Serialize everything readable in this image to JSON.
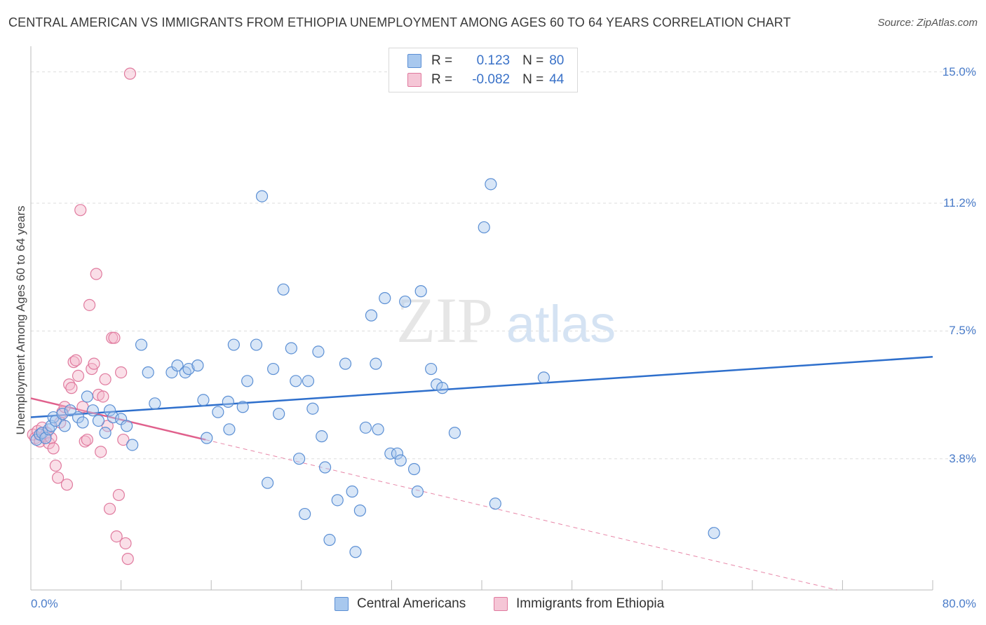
{
  "title": "CENTRAL AMERICAN VS IMMIGRANTS FROM ETHIOPIA UNEMPLOYMENT AMONG AGES 60 TO 64 YEARS CORRELATION CHART",
  "source": "Source: ZipAtlas.com",
  "watermark": {
    "zip": "ZIP",
    "atlas": "atlas"
  },
  "legend": {
    "r_label": "R =",
    "n_label": "N =",
    "series0": {
      "r": "0.123",
      "n": "80"
    },
    "series1": {
      "r": "-0.082",
      "n": "44"
    }
  },
  "colors": {
    "blue_fill": "#a8c8ee",
    "blue_stroke": "#5b8fd4",
    "blue_line": "#2e6fcc",
    "pink_fill": "#f5b8cc",
    "pink_stroke": "#e07a9e",
    "pink_line": "#e0608c",
    "grid": "#dddddd",
    "tick_label": "#4a7cc9"
  },
  "chart_data": {
    "type": "scatter",
    "title": "CENTRAL AMERICAN VS IMMIGRANTS FROM ETHIOPIA UNEMPLOYMENT AMONG AGES 60 TO 64 YEARS CORRELATION CHART",
    "xlabel": "",
    "ylabel": "Unemployment Among Ages 60 to 64 years",
    "xlim": [
      0,
      80
    ],
    "ylim": [
      0,
      15.5
    ],
    "x_tick_labels": [
      "0.0%",
      "80.0%"
    ],
    "y_ticks": [
      3.8,
      7.5,
      11.2,
      15.0
    ],
    "y_tick_labels": [
      "3.8%",
      "7.5%",
      "11.2%",
      "15.0%"
    ],
    "series": [
      {
        "name": "Central Americans",
        "r": 0.123,
        "n": 80,
        "trend": {
          "x0": 0,
          "y0": 5.0,
          "x1": 80,
          "y1": 6.75
        },
        "points": [
          [
            0.5,
            4.35
          ],
          [
            0.8,
            4.5
          ],
          [
            1.0,
            4.55
          ],
          [
            1.3,
            4.4
          ],
          [
            1.6,
            4.65
          ],
          [
            1.8,
            4.75
          ],
          [
            2.0,
            5.0
          ],
          [
            2.2,
            4.9
          ],
          [
            2.8,
            5.1
          ],
          [
            3.0,
            4.75
          ],
          [
            3.5,
            5.2
          ],
          [
            4.2,
            5.0
          ],
          [
            4.6,
            4.85
          ],
          [
            5.0,
            5.6
          ],
          [
            5.5,
            5.2
          ],
          [
            6.0,
            4.9
          ],
          [
            6.6,
            4.55
          ],
          [
            7.0,
            5.2
          ],
          [
            7.3,
            5.0
          ],
          [
            8.0,
            4.95
          ],
          [
            8.5,
            4.75
          ],
          [
            9.0,
            4.2
          ],
          [
            9.8,
            7.1
          ],
          [
            10.4,
            6.3
          ],
          [
            11.0,
            5.4
          ],
          [
            12.5,
            6.3
          ],
          [
            13.0,
            6.5
          ],
          [
            13.7,
            6.3
          ],
          [
            14.0,
            6.4
          ],
          [
            14.8,
            6.5
          ],
          [
            15.3,
            5.5
          ],
          [
            15.6,
            4.4
          ],
          [
            16.6,
            5.15
          ],
          [
            17.5,
            5.45
          ],
          [
            17.6,
            4.65
          ],
          [
            18.0,
            7.1
          ],
          [
            18.8,
            5.3
          ],
          [
            19.2,
            6.05
          ],
          [
            20.0,
            7.1
          ],
          [
            20.5,
            11.4
          ],
          [
            21.0,
            3.1
          ],
          [
            21.5,
            6.4
          ],
          [
            22.0,
            5.1
          ],
          [
            22.4,
            8.7
          ],
          [
            23.1,
            7.0
          ],
          [
            23.5,
            6.05
          ],
          [
            23.8,
            3.8
          ],
          [
            24.3,
            2.2
          ],
          [
            24.6,
            6.05
          ],
          [
            25.0,
            5.25
          ],
          [
            25.5,
            6.9
          ],
          [
            25.8,
            4.45
          ],
          [
            26.1,
            3.55
          ],
          [
            26.5,
            1.45
          ],
          [
            27.2,
            2.6
          ],
          [
            27.9,
            6.55
          ],
          [
            28.5,
            2.85
          ],
          [
            28.8,
            1.1
          ],
          [
            29.2,
            2.3
          ],
          [
            29.7,
            4.7
          ],
          [
            30.2,
            7.95
          ],
          [
            30.6,
            6.55
          ],
          [
            30.8,
            4.65
          ],
          [
            31.4,
            8.45
          ],
          [
            31.9,
            3.95
          ],
          [
            32.5,
            3.95
          ],
          [
            32.8,
            3.75
          ],
          [
            33.2,
            8.35
          ],
          [
            34.0,
            3.5
          ],
          [
            34.3,
            2.85
          ],
          [
            34.6,
            8.65
          ],
          [
            35.5,
            6.4
          ],
          [
            36.0,
            5.95
          ],
          [
            36.5,
            5.85
          ],
          [
            37.6,
            4.55
          ],
          [
            40.2,
            10.5
          ],
          [
            40.8,
            11.75
          ],
          [
            41.2,
            2.5
          ],
          [
            45.5,
            6.15
          ],
          [
            60.6,
            1.65
          ]
        ]
      },
      {
        "name": "Immigrants from Ethiopia",
        "r": -0.082,
        "n": 44,
        "trend_solid": {
          "x0": 0,
          "y0": 5.55,
          "x1": 15.5,
          "y1": 4.35
        },
        "trend_dashed": {
          "x0": 15.5,
          "y0": 4.35,
          "x1": 71.5,
          "y1": 0
        },
        "points": [
          [
            0.2,
            4.5
          ],
          [
            0.4,
            4.4
          ],
          [
            0.6,
            4.6
          ],
          [
            0.8,
            4.3
          ],
          [
            1.0,
            4.7
          ],
          [
            1.2,
            4.45
          ],
          [
            1.4,
            4.55
          ],
          [
            1.6,
            4.25
          ],
          [
            1.8,
            4.4
          ],
          [
            2.0,
            4.1
          ],
          [
            2.2,
            3.6
          ],
          [
            2.4,
            3.25
          ],
          [
            2.6,
            4.85
          ],
          [
            2.8,
            5.15
          ],
          [
            3.0,
            5.3
          ],
          [
            3.2,
            3.05
          ],
          [
            3.4,
            5.95
          ],
          [
            3.6,
            5.85
          ],
          [
            3.8,
            6.6
          ],
          [
            4.0,
            6.65
          ],
          [
            4.2,
            6.2
          ],
          [
            4.4,
            11.0
          ],
          [
            4.6,
            5.3
          ],
          [
            4.8,
            4.3
          ],
          [
            5.0,
            4.35
          ],
          [
            5.2,
            8.25
          ],
          [
            5.4,
            6.4
          ],
          [
            5.6,
            6.55
          ],
          [
            5.8,
            9.15
          ],
          [
            6.0,
            5.65
          ],
          [
            6.2,
            4.0
          ],
          [
            6.4,
            5.6
          ],
          [
            6.6,
            6.1
          ],
          [
            6.8,
            4.75
          ],
          [
            7.0,
            2.35
          ],
          [
            7.2,
            7.3
          ],
          [
            7.4,
            7.3
          ],
          [
            7.6,
            1.55
          ],
          [
            7.8,
            2.75
          ],
          [
            8.0,
            6.3
          ],
          [
            8.2,
            4.35
          ],
          [
            8.4,
            1.35
          ],
          [
            8.6,
            0.9
          ],
          [
            8.8,
            14.95
          ]
        ]
      }
    ]
  },
  "bottom_legend": {
    "series0": "Central Americans",
    "series1": "Immigrants from Ethiopia"
  }
}
